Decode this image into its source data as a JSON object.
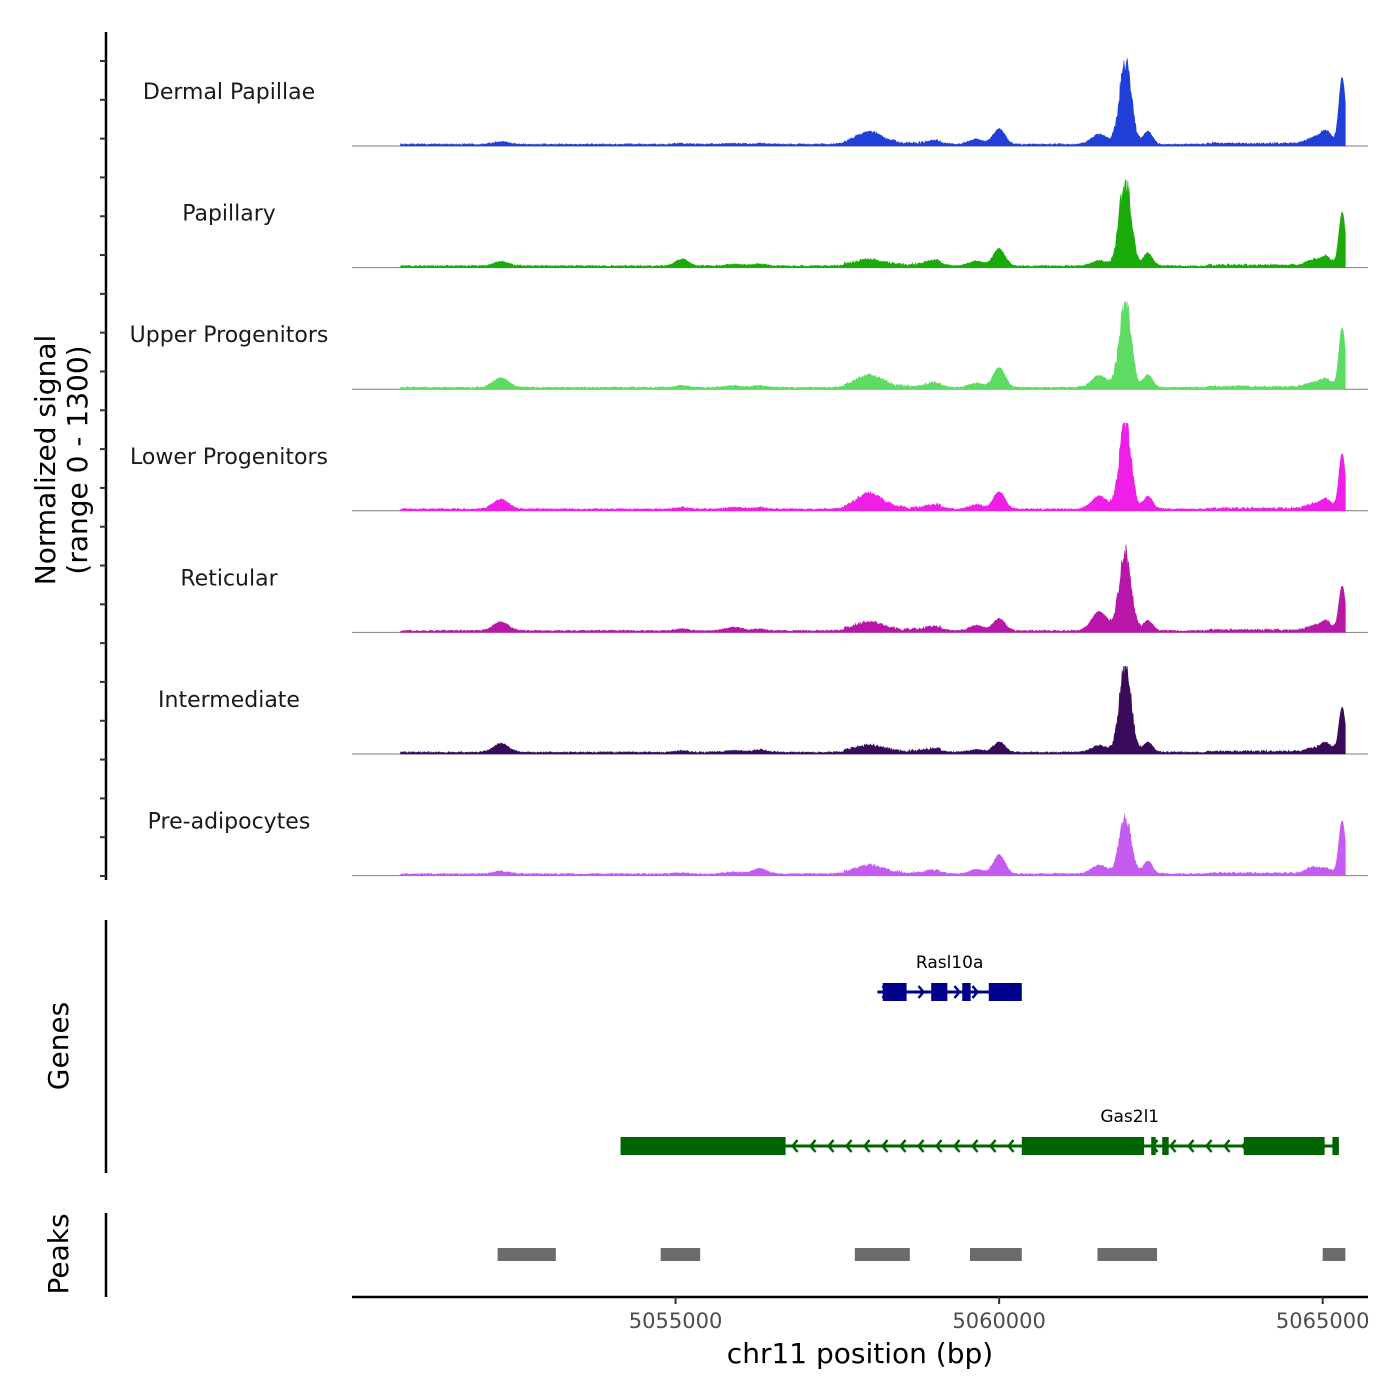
{
  "chart_data": {
    "type": "area",
    "title": "",
    "ylabel_line1": "Normalized signal",
    "ylabel_line2": "(range 0 - 1300)",
    "yrange": [
      0,
      1300
    ],
    "xlabel": "chr11 position (bp)",
    "xlim": [
      5050000,
      5065700
    ],
    "xticks": [
      5055000,
      5060000,
      5065000
    ],
    "xtick_labels": [
      "5055000",
      "5060000",
      "5065000"
    ],
    "signal_start": 5050750,
    "signal_end": 5065350,
    "peak_positions": [
      {
        "name": "p1",
        "pos": 5052300,
        "width": 120
      },
      {
        "name": "p2",
        "pos": 5055100,
        "width": 100
      },
      {
        "name": "p3",
        "pos": 5055900,
        "width": 130
      },
      {
        "name": "p4",
        "pos": 5056300,
        "width": 110
      },
      {
        "name": "p5",
        "pos": 5058000,
        "width": 200
      },
      {
        "name": "p6",
        "pos": 5059000,
        "width": 120
      },
      {
        "name": "p7",
        "pos": 5059650,
        "width": 110
      },
      {
        "name": "p8",
        "pos": 5060000,
        "width": 90
      },
      {
        "name": "p9",
        "pos": 5061550,
        "width": 120
      },
      {
        "name": "p10",
        "pos": 5061950,
        "width": 90
      },
      {
        "name": "p11",
        "pos": 5062300,
        "width": 70
      },
      {
        "name": "p12",
        "pos": 5064850,
        "width": 100
      },
      {
        "name": "p13",
        "pos": 5065050,
        "width": 80
      },
      {
        "name": "p14",
        "pos": 5065300,
        "width": 50
      }
    ],
    "series": [
      {
        "name": "Dermal Papillae",
        "color": "#1f3fd6",
        "peaks": [
          0.03,
          0.01,
          0.01,
          0.01,
          0.13,
          0.03,
          0.06,
          0.18,
          0.12,
          0.95,
          0.15,
          0.07,
          0.15,
          0.78
        ]
      },
      {
        "name": "Papillary",
        "color": "#1aab0a",
        "peaks": [
          0.05,
          0.08,
          0.02,
          0.02,
          0.06,
          0.05,
          0.06,
          0.2,
          0.06,
          1.0,
          0.15,
          0.06,
          0.1,
          0.62
        ]
      },
      {
        "name": "Upper Progenitors",
        "color": "#5ddb63",
        "peaks": [
          0.11,
          0.02,
          0.02,
          0.02,
          0.13,
          0.04,
          0.05,
          0.23,
          0.14,
          1.0,
          0.15,
          0.05,
          0.09,
          0.69
        ]
      },
      {
        "name": "Lower Progenitors",
        "color": "#ef1fe8",
        "peaks": [
          0.11,
          0.02,
          0.02,
          0.02,
          0.17,
          0.04,
          0.05,
          0.2,
          0.15,
          1.0,
          0.15,
          0.05,
          0.1,
          0.64
        ]
      },
      {
        "name": "Reticular",
        "color": "#b716a9",
        "peaks": [
          0.1,
          0.02,
          0.04,
          0.02,
          0.09,
          0.04,
          0.06,
          0.14,
          0.22,
          0.95,
          0.12,
          0.05,
          0.1,
          0.52
        ]
      },
      {
        "name": "Intermediate",
        "color": "#3a0a5a",
        "peaks": [
          0.1,
          0.02,
          0.02,
          0.03,
          0.07,
          0.03,
          0.03,
          0.12,
          0.08,
          1.0,
          0.12,
          0.04,
          0.1,
          0.52
        ]
      },
      {
        "name": "Pre-adipocytes",
        "color": "#c45cf2",
        "peaks": [
          0.03,
          0.01,
          0.02,
          0.06,
          0.09,
          0.03,
          0.05,
          0.22,
          0.1,
          0.65,
          0.15,
          0.07,
          0.05,
          0.62
        ]
      }
    ],
    "genes_axis_title": "Genes",
    "genes": [
      {
        "name": "Rasl10a",
        "color": "#00008b",
        "strand": "+",
        "start": 5058120,
        "end": 5060350,
        "exons": [
          [
            5058200,
            5058570
          ],
          [
            5058950,
            5059200
          ],
          [
            5059430,
            5059560
          ],
          [
            5059840,
            5060350
          ]
        ]
      },
      {
        "name": "Gas2l1",
        "color": "#006400",
        "strand": "-",
        "start": 5054150,
        "end": 5065250,
        "exons": [
          [
            5054150,
            5056700
          ],
          [
            5060350,
            5062240
          ],
          [
            5062350,
            5062420
          ],
          [
            5062520,
            5062620
          ],
          [
            5063780,
            5065030
          ],
          [
            5065150,
            5065250
          ]
        ]
      }
    ],
    "peaks_axis_title": "Peaks",
    "peaks": [
      [
        5052250,
        5053150
      ],
      [
        5054770,
        5055380
      ],
      [
        5057770,
        5058620
      ],
      [
        5059550,
        5060350
      ],
      [
        5061520,
        5062440
      ],
      [
        5065000,
        5065350
      ]
    ]
  }
}
